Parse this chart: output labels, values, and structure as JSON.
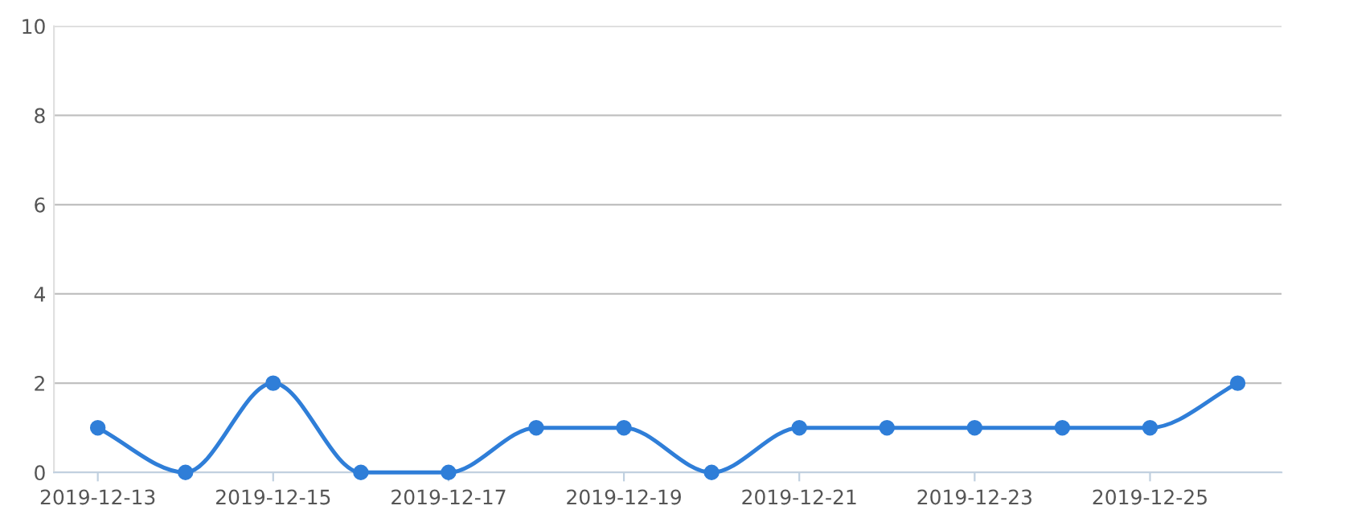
{
  "chart_data": {
    "type": "line",
    "categories": [
      "2019-12-13",
      null,
      "2019-12-15",
      null,
      "2019-12-17",
      null,
      "2019-12-19",
      null,
      "2019-12-21",
      null,
      "2019-12-23",
      null,
      "2019-12-25",
      null
    ],
    "series": [
      {
        "color": "#2f7ed8",
        "values": [
          1,
          0,
          2,
          0,
          0,
          1,
          1,
          0,
          1,
          1,
          1,
          1,
          1,
          2
        ]
      }
    ],
    "ylim": [
      0,
      10
    ],
    "yticks": [
      0,
      2,
      4,
      6,
      8,
      10
    ],
    "grid": "y",
    "marker": "circle",
    "line_style": "solid",
    "legend": false
  }
}
